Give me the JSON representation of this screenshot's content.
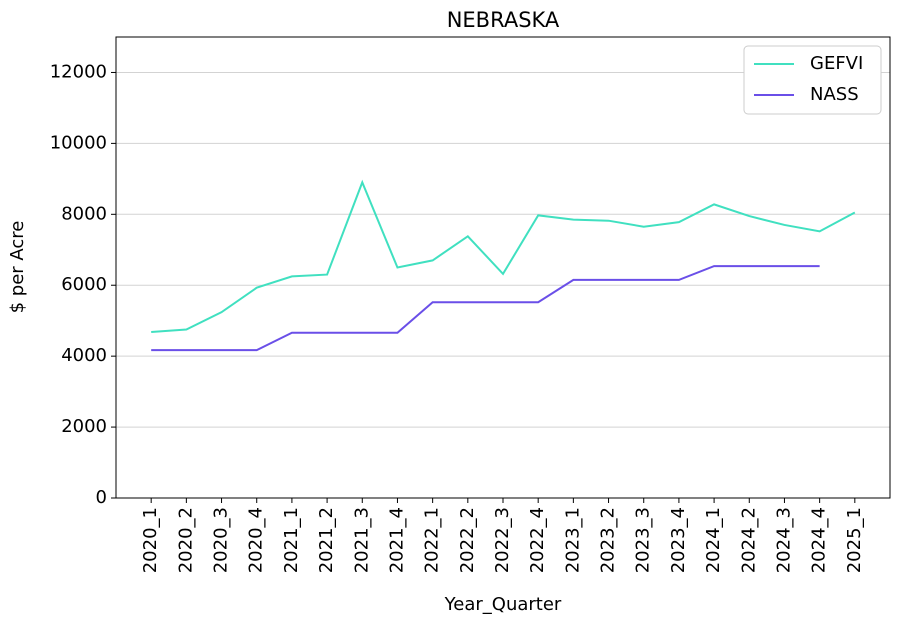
{
  "chart_data": {
    "type": "line",
    "title": "NEBRASKA",
    "x_label": "Year_Quarter",
    "y_label": "$ per Acre",
    "categories": [
      "2020_1",
      "2020_2",
      "2020_3",
      "2020_4",
      "2021_1",
      "2021_2",
      "2021_3",
      "2021_4",
      "2022_1",
      "2022_2",
      "2022_3",
      "2022_4",
      "2023_1",
      "2023_2",
      "2023_3",
      "2023_4",
      "2024_1",
      "2024_2",
      "2024_3",
      "2024_4",
      "2025_1"
    ],
    "series": [
      {
        "name": "GEFVI",
        "color": "#40e0c0",
        "values": [
          4680,
          4750,
          5240,
          5930,
          6250,
          6300,
          8900,
          6500,
          6700,
          7380,
          6320,
          7970,
          7850,
          7820,
          7650,
          7780,
          8280,
          7950,
          7700,
          7520,
          8050
        ]
      },
      {
        "name": "NASS",
        "color": "#6a4fe8",
        "values": [
          4170,
          4170,
          4170,
          4170,
          4660,
          4660,
          4660,
          4660,
          5520,
          5520,
          5520,
          5520,
          6150,
          6150,
          6150,
          6150,
          6540,
          6540,
          6540,
          6540,
          null
        ]
      }
    ],
    "ylim": [
      0,
      13000
    ],
    "yticks": [
      0,
      2000,
      4000,
      6000,
      8000,
      10000,
      12000
    ],
    "grid": true,
    "legend": "upper right"
  }
}
